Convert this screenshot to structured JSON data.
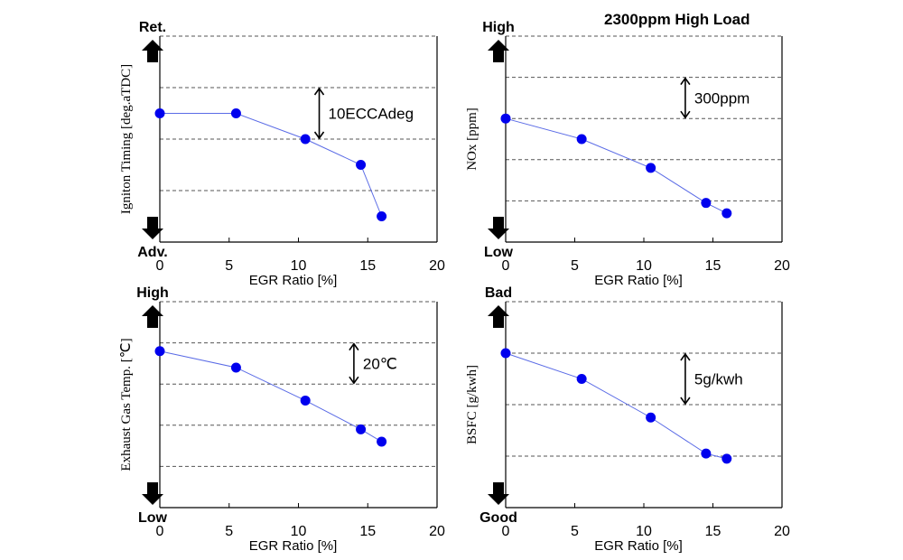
{
  "figure": {
    "title": "2300ppm High Load",
    "colors": {
      "series": "#0000ee",
      "line": "#5a6be6",
      "grid": "#555555",
      "axis": "#000000"
    }
  },
  "chart_data": [
    {
      "type": "line",
      "id": "ign",
      "xlabel": "EGR Ratio [%]",
      "ylabel": "Igniton Timing [deg.aTDC]",
      "xticks": [
        0,
        5,
        10,
        15,
        20
      ],
      "xlim": [
        0,
        20
      ],
      "ylim": [
        0,
        4
      ],
      "y_top_label": "Ret.",
      "y_bottom_label": "Adv.",
      "grid_y": [
        1,
        2,
        3
      ],
      "x": [
        0,
        5.5,
        10.5,
        14.5,
        16
      ],
      "y": [
        2.5,
        2.5,
        2.0,
        1.5,
        0.5
      ],
      "scale_annotation": {
        "text": "10ECCAdeg",
        "x": 11.5,
        "y_from": 2.0,
        "y_to": 3.0
      }
    },
    {
      "type": "line",
      "id": "nox",
      "xlabel": "EGR Ratio [%]",
      "ylabel": "NOx [ppm]",
      "xticks": [
        0,
        5,
        10,
        15,
        20
      ],
      "xlim": [
        0,
        20
      ],
      "ylim": [
        0,
        5
      ],
      "y_top_label": "High",
      "y_bottom_label": "Low",
      "grid_y": [
        1,
        2,
        3,
        4
      ],
      "x": [
        0,
        5.5,
        10.5,
        14.5,
        16
      ],
      "y": [
        3.0,
        2.5,
        1.8,
        0.95,
        0.7
      ],
      "scale_annotation": {
        "text": "300ppm",
        "x": 13,
        "y_from": 3.0,
        "y_to": 4.0
      }
    },
    {
      "type": "line",
      "id": "egt",
      "xlabel": "EGR Ratio [%]",
      "ylabel": "Exhaust Gas Temp. [℃]",
      "xticks": [
        0,
        5,
        10,
        15,
        20
      ],
      "xlim": [
        0,
        20
      ],
      "ylim": [
        0,
        5
      ],
      "y_top_label": "High",
      "y_bottom_label": "Low",
      "grid_y": [
        1,
        2,
        3,
        4
      ],
      "x": [
        0,
        5.5,
        10.5,
        14.5,
        16
      ],
      "y": [
        3.8,
        3.4,
        2.6,
        1.9,
        1.6
      ],
      "scale_annotation": {
        "text": "20℃",
        "x": 14,
        "y_from": 3.0,
        "y_to": 4.0
      }
    },
    {
      "type": "line",
      "id": "bsfc",
      "xlabel": "EGR Ratio [%]",
      "ylabel": "BSFC [g/kwh]",
      "xticks": [
        0,
        5,
        10,
        15,
        20
      ],
      "xlim": [
        0,
        20
      ],
      "ylim": [
        0,
        4
      ],
      "y_top_label": "Bad",
      "y_bottom_label": "Good",
      "grid_y": [
        1,
        2,
        3
      ],
      "x": [
        0,
        5.5,
        10.5,
        14.5,
        16
      ],
      "y": [
        3.0,
        2.5,
        1.75,
        1.05,
        0.95
      ],
      "scale_annotation": {
        "text": "5g/kwh",
        "x": 13,
        "y_from": 2.0,
        "y_to": 3.0
      }
    }
  ]
}
